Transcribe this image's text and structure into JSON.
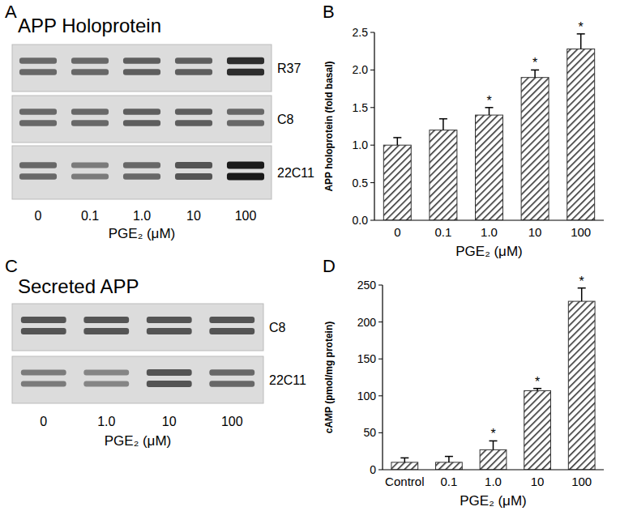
{
  "chart_data": [
    {
      "type": "bar",
      "panel_label": "B",
      "categories": [
        "0",
        "0.1",
        "1.0",
        "10",
        "100"
      ],
      "values": [
        1.0,
        1.2,
        1.4,
        1.9,
        2.28
      ],
      "errors": [
        0.1,
        0.15,
        0.1,
        0.1,
        0.2
      ],
      "significance": [
        null,
        null,
        "*",
        "*",
        "*"
      ],
      "x_label": "PGE₂ (μM)",
      "y_label": "APP holoprotein (fold basal)",
      "ylim": [
        0,
        2.5
      ],
      "yticks": [
        {
          "value": 0,
          "label": "0.0"
        },
        0.5,
        {
          "value": 1,
          "label": "1.0"
        },
        1.5,
        {
          "value": 2,
          "label": "2.0"
        },
        2.5
      ],
      "color": "#333333",
      "grid": false
    },
    {
      "type": "bar",
      "panel_label": "D",
      "categories": [
        "Control",
        "0.1",
        "1.0",
        "10",
        "100"
      ],
      "values": [
        10,
        10,
        27,
        107,
        228
      ],
      "errors": [
        6,
        8,
        12,
        3,
        18
      ],
      "significance": [
        null,
        null,
        "*",
        "*",
        "*"
      ],
      "x_label": "PGE₂ (μM)",
      "y_label": "cAMP (pmol/mg protein)",
      "ylim": [
        0,
        250
      ],
      "yticks": [
        0,
        50,
        100,
        150,
        200,
        250
      ],
      "color": "#333333",
      "grid": false
    }
  ],
  "blots": [
    {
      "panel_label": "A",
      "title": "APP Holoprotein",
      "lanes": [
        "0",
        "0.1",
        "1.0",
        "10",
        "100"
      ],
      "x_label": "PGE₂ (μM)",
      "rows": [
        {
          "label": "R37",
          "band_intensity": [
            0.6,
            0.6,
            0.65,
            0.65,
            0.9
          ]
        },
        {
          "label": "C8",
          "band_intensity": [
            0.6,
            0.6,
            0.65,
            0.65,
            0.6
          ]
        },
        {
          "label": "22C11",
          "band_intensity": [
            0.6,
            0.5,
            0.6,
            0.7,
            1.0
          ]
        }
      ]
    },
    {
      "panel_label": "C",
      "title": "Secreted APP",
      "lanes": [
        "0",
        "1.0",
        "10",
        "100"
      ],
      "x_label": "PGE₂ (μM)",
      "rows": [
        {
          "label": "C8",
          "band_intensity": [
            0.7,
            0.7,
            0.7,
            0.7
          ]
        },
        {
          "label": "22C11",
          "band_intensity": [
            0.5,
            0.45,
            0.7,
            0.6
          ]
        }
      ]
    }
  ]
}
